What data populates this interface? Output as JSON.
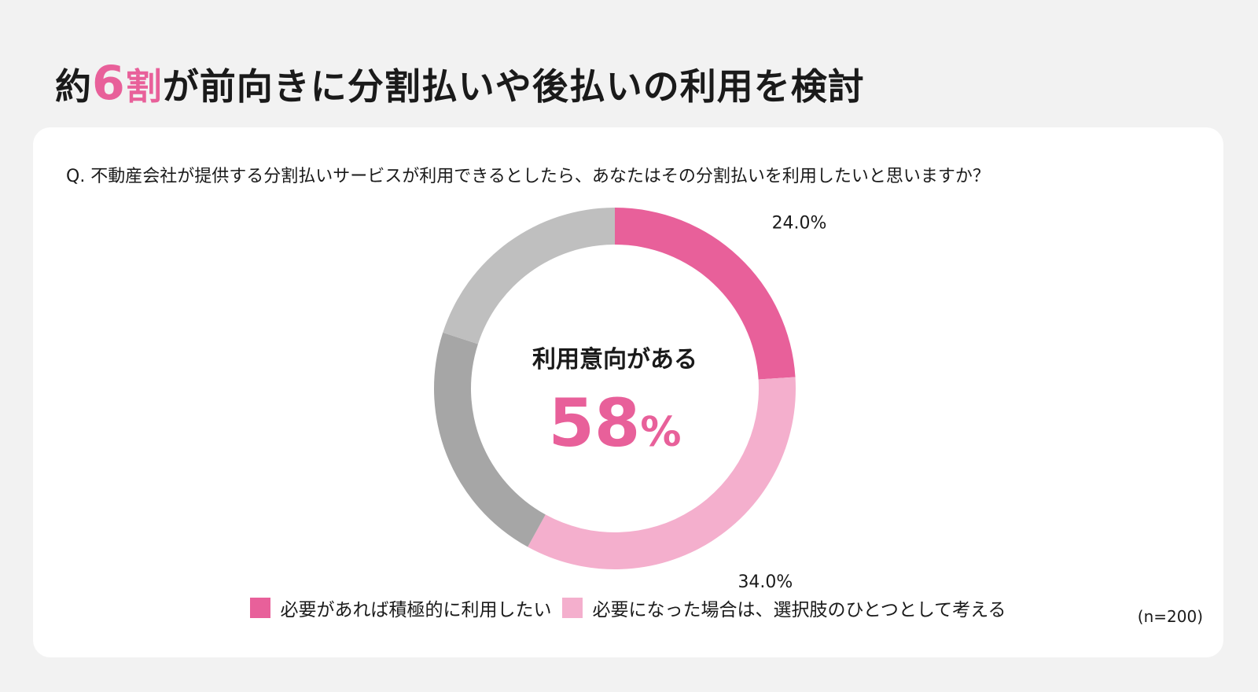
{
  "headline": {
    "prefix": "約",
    "number": "6",
    "unit": "割",
    "rest": "が前向きに分割払いや後払いの利用を検討",
    "accent_color": "#e8609a"
  },
  "question": "Q. 不動産会社が提供する分割払いサービスが利用できるとしたら、あなたはその分割払いを利用したいと思いますか？",
  "center": {
    "label": "利用意向がある",
    "value": "58",
    "unit": "%"
  },
  "legend": [
    {
      "label": "必要があれば積極的に利用したい",
      "color": "#e8609a"
    },
    {
      "label": "必要になった場合は、選択肢のひとつとして考える",
      "color": "#f4afcd"
    }
  ],
  "sample_size": "(n=200)",
  "chart_data": {
    "type": "pie",
    "series": [
      {
        "name": "必要があれば積極的に利用したい",
        "value": 24.0,
        "label": "24.0%",
        "color": "#e8609a"
      },
      {
        "name": "必要になった場合は、選択肢のひとつとして考える",
        "value": 34.0,
        "label": "34.0%",
        "color": "#f4afcd"
      },
      {
        "value": 22.0,
        "label": "",
        "color": "#a6a6a6"
      },
      {
        "value": 20.0,
        "label": "",
        "color": "#bfbfbf"
      }
    ]
  }
}
